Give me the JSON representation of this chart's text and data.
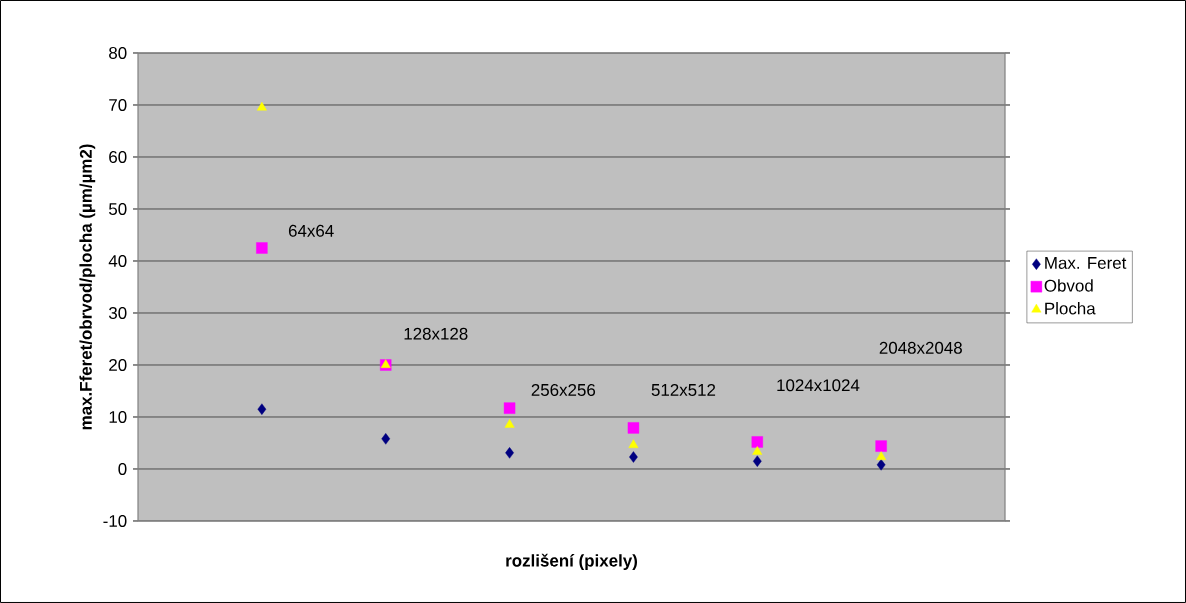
{
  "chart_data": {
    "type": "scatter",
    "xlabel": "rozlišení (pixely)",
    "ylabel": "max.Fferet/obrvod/plocha (µm/µm2)",
    "categories": [
      null,
      null,
      null,
      null,
      null,
      null
    ],
    "ylim": [
      -10,
      80
    ],
    "yticks": [
      -10,
      0,
      10,
      20,
      30,
      40,
      50,
      60,
      70,
      80
    ],
    "grid": "y",
    "legend": "right",
    "series": [
      {
        "name": "Max. Feret",
        "color": "#000080",
        "marker": "diamond",
        "values": [
          11.5,
          5.8,
          3.1,
          2.3,
          1.5,
          0.8
        ]
      },
      {
        "name": "Obvod",
        "color": "#ff00ff",
        "marker": "square",
        "values": [
          42.5,
          20,
          11.7,
          7.9,
          5.2,
          4.4
        ]
      },
      {
        "name": "Plocha",
        "color": "#ffff00",
        "marker": "triangle",
        "values": [
          69.5,
          20,
          8.5,
          4.6,
          3.3,
          2.3
        ]
      }
    ],
    "annotations": [
      "64x64",
      "128x128",
      "256x256",
      "512x512",
      "1024x1024",
      "2048x2048"
    ]
  }
}
